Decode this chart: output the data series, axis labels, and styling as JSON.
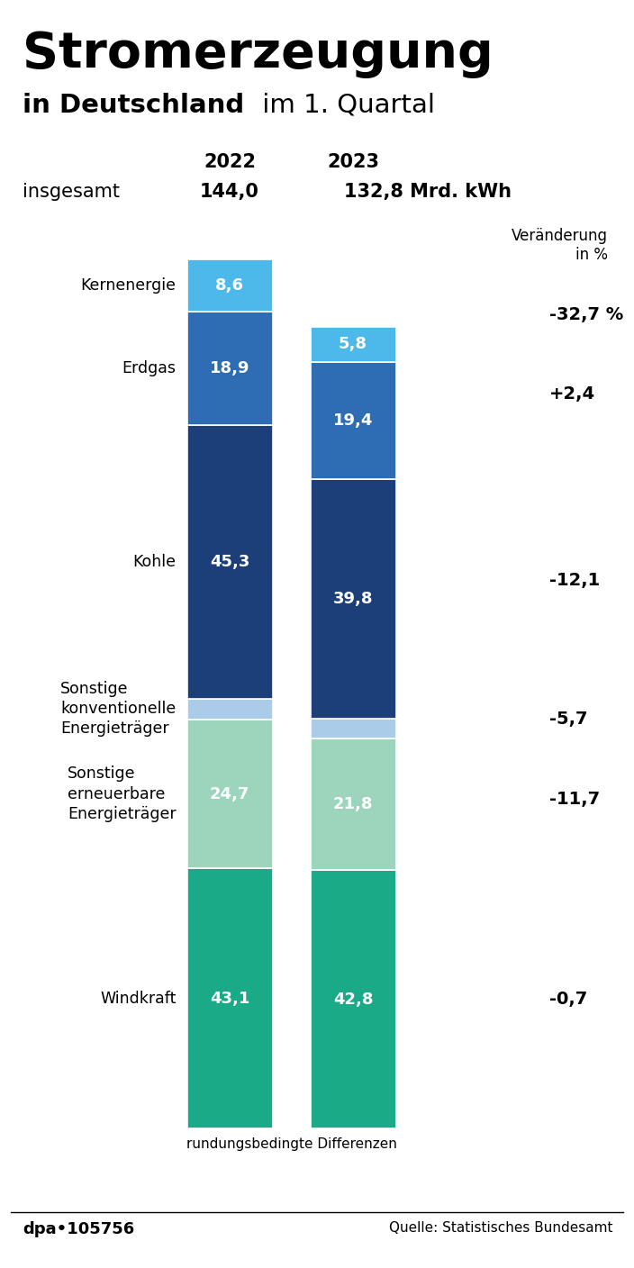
{
  "title_line1": "Stromerzeugung",
  "title_line2_bold": "in Deutschland",
  "title_line2_rest": " im 1. Quartal",
  "year_2022": "2022",
  "year_2023": "2023",
  "total_label": "insgesamt",
  "total_2022": "144,0",
  "total_2023": "132,8 Mrd. kWh",
  "change_header": "Veränderung\nin %",
  "footer_left": "dpa•105756",
  "footer_right": "Quelle: Statistisches Bundesamt",
  "footer_note": "rundungsbedingte Differenzen",
  "values_2022": [
    43.1,
    24.7,
    3.5,
    45.3,
    18.9,
    8.6
  ],
  "values_2023": [
    42.8,
    21.8,
    3.3,
    39.8,
    19.4,
    5.8
  ],
  "changes": [
    "-0,7",
    "-11,7",
    "-5,7",
    "-12,1",
    "+2,4",
    "-32,7 %"
  ],
  "colors": [
    "#1aaa88",
    "#9dd4bc",
    "#aacce8",
    "#1c3f7a",
    "#2e6db4",
    "#4db8ea"
  ],
  "label_texts": [
    "Windkraft",
    "Sonstige\nerneuerbare\nEnergieträger",
    "Sonstige\nkonventionelle\nEnergieträger",
    "Kohle",
    "Erdgas",
    "Kernenergie"
  ],
  "background_color": "#ffffff"
}
